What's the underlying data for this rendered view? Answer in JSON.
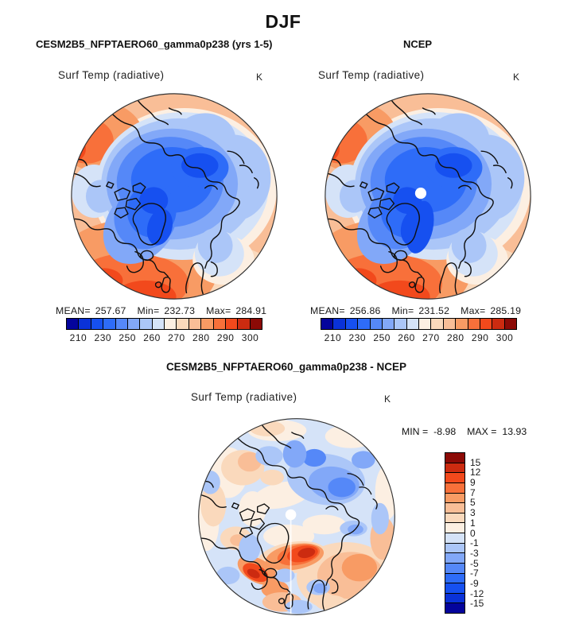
{
  "header": {
    "season": "DJF"
  },
  "panels": {
    "left": {
      "case_title": "CESM2B5_NFPTAERO60_gamma0p238 (yrs 1-5)",
      "field_title": "Surf Temp (radiative)",
      "units": "K",
      "stats": {
        "mean_label": "MEAN=",
        "mean": "257.67",
        "min_label": "Min=",
        "min": "232.73",
        "max_label": "Max=",
        "max": "284.91"
      }
    },
    "right": {
      "case_title": "NCEP",
      "field_title": "Surf Temp (radiative)",
      "units": "K",
      "stats": {
        "mean_label": "MEAN=",
        "mean": "256.86",
        "min_label": "Min=",
        "min": "231.52",
        "max_label": "Max=",
        "max": "285.19"
      }
    },
    "diff": {
      "title": "CESM2B5_NFPTAERO60_gamma0p238 - NCEP",
      "field_title": "Surf Temp (radiative)",
      "units": "K",
      "stats": {
        "min_label": "MIN =",
        "min": "-8.98",
        "max_label": "MAX =",
        "max": "13.93"
      }
    }
  },
  "palette": {
    "name": "blue-red-16",
    "colors": [
      "#04049C",
      "#0A32D8",
      "#1650F0",
      "#2E6CF8",
      "#5588F8",
      "#82A8F8",
      "#ABC6F8",
      "#D5E3F8",
      "#FCEFE2",
      "#FAD9BC",
      "#F9BE97",
      "#F89B64",
      "#F8703A",
      "#F2491C",
      "#CC2B10",
      "#8C0A06"
    ]
  },
  "colorbar_absolute": {
    "orientation": "horizontal",
    "ticks": [
      {
        "boundary": 1,
        "label": "210"
      },
      {
        "boundary": 3,
        "label": "230"
      },
      {
        "boundary": 5,
        "label": "250"
      },
      {
        "boundary": 7,
        "label": "260"
      },
      {
        "boundary": 9,
        "label": "270"
      },
      {
        "boundary": 11,
        "label": "280"
      },
      {
        "boundary": 13,
        "label": "290"
      },
      {
        "boundary": 15,
        "label": "300"
      }
    ]
  },
  "colorbar_difference": {
    "orientation": "vertical",
    "ticks": [
      {
        "boundary": 1,
        "label": "15"
      },
      {
        "boundary": 2,
        "label": "12"
      },
      {
        "boundary": 3,
        "label": "9"
      },
      {
        "boundary": 4,
        "label": "7"
      },
      {
        "boundary": 5,
        "label": "5"
      },
      {
        "boundary": 6,
        "label": "3"
      },
      {
        "boundary": 7,
        "label": "1"
      },
      {
        "boundary": 8,
        "label": "0"
      },
      {
        "boundary": 9,
        "label": "-1"
      },
      {
        "boundary": 10,
        "label": "-3"
      },
      {
        "boundary": 11,
        "label": "-5"
      },
      {
        "boundary": 12,
        "label": "-7"
      },
      {
        "boundary": 13,
        "label": "-9"
      },
      {
        "boundary": 14,
        "label": "-12"
      },
      {
        "boundary": 15,
        "label": "-15"
      }
    ]
  },
  "chart_data": [
    {
      "type": "heatmap",
      "subtype": "filled-contour-map",
      "projection": "north-polar-stereographic",
      "season": "DJF",
      "title": "CESM2B5_NFPTAERO60_gamma0p238 (yrs 1-5)",
      "field": "Surf Temp (radiative)",
      "units": "K",
      "mean": 257.67,
      "min": 232.73,
      "max": 284.91,
      "contour_levels": [
        210,
        220,
        230,
        240,
        250,
        255,
        260,
        265,
        270,
        275,
        280,
        285,
        290,
        295,
        300
      ],
      "labeled_levels": [
        210,
        230,
        250,
        260,
        270,
        280,
        290,
        300
      ],
      "legend_position": "below",
      "pattern": "warm oranges around outer (lower-latitude) rim, strongest at bottom (Atlantic/Europe) and upper-left (Pacific); broad blue cold mass over Arctic with darkest blues over Siberia and Canadian Archipelago/Greenland"
    },
    {
      "type": "heatmap",
      "subtype": "filled-contour-map",
      "projection": "north-polar-stereographic",
      "season": "DJF",
      "title": "NCEP",
      "field": "Surf Temp (radiative)",
      "units": "K",
      "mean": 256.86,
      "min": 231.52,
      "max": 285.19,
      "contour_levels": [
        210,
        220,
        230,
        240,
        250,
        255,
        260,
        265,
        270,
        275,
        280,
        285,
        290,
        295,
        300
      ],
      "labeled_levels": [
        210,
        230,
        250,
        260,
        270,
        280,
        290,
        300
      ],
      "legend_position": "below",
      "pattern": "same structure as model panel; white missing-data dot at the pole"
    },
    {
      "type": "heatmap",
      "subtype": "filled-contour-map-difference",
      "projection": "north-polar-stereographic",
      "season": "DJF",
      "title": "CESM2B5_NFPTAERO60_gamma0p238 - NCEP",
      "field": "Surf Temp (radiative)",
      "units": "K",
      "min": -8.98,
      "max": 13.93,
      "contour_levels": [
        -15,
        -12,
        -9,
        -7,
        -5,
        -3,
        -1,
        0,
        1,
        3,
        5,
        7,
        9,
        12,
        15
      ],
      "legend_position": "right",
      "pattern": "mottled weak anomalies; strong warm (red) band south of the pole near Greenland Sea and southwest of Greenland, warm lower-right sector, cool (blue) patches over Siberian/upper-right sector; white dot and seam at pole"
    }
  ]
}
